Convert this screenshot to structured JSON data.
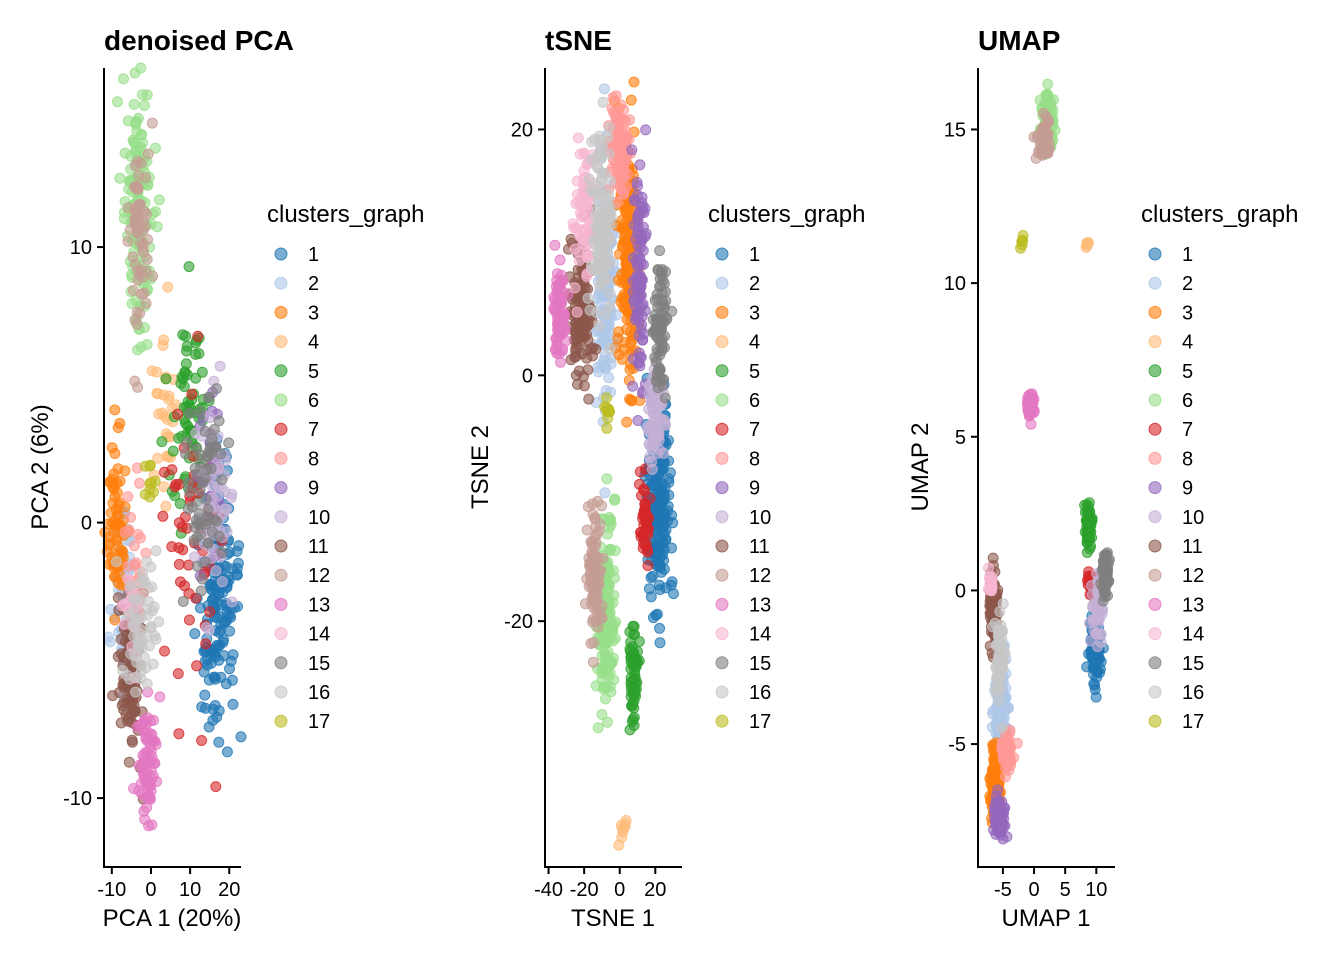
{
  "colors": {
    "1": "#1F77B4",
    "2": "#AEC7E8",
    "3": "#FF7F0E",
    "4": "#FFBB78",
    "5": "#2CA02C",
    "6": "#98DF8A",
    "7": "#D62728",
    "8": "#FF9896",
    "9": "#9467BD",
    "10": "#C5B0D5",
    "11": "#8C564B",
    "12": "#C49C94",
    "13": "#E377C2",
    "14": "#F7B6D2",
    "15": "#7F7F7F",
    "16": "#C7C7C7",
    "17": "#BCBD22"
  },
  "chart_data": [
    {
      "type": "scatter",
      "title": "denoised PCA",
      "xlabel": "PCA 1 (20%)",
      "ylabel": "PCA 2 (6%)",
      "xlim": [
        -12,
        23
      ],
      "ylim": [
        -12.5,
        16.5
      ],
      "xticks": [
        -10,
        0,
        10,
        20
      ],
      "xticklabels": [
        "-10",
        "0",
        "10",
        "20"
      ],
      "yticks": [
        -10,
        0,
        10
      ],
      "yticklabels": [
        "-10",
        "0",
        "10"
      ],
      "legend_title": "clusters_graph",
      "legend_position": "right",
      "grid": false,
      "clusters": [
        {
          "name": "1",
          "cx": 17,
          "cy": -3,
          "sx": 2.5,
          "sy": 2.5,
          "n": 160
        },
        {
          "name": "2",
          "cx": -7,
          "cy": -2.5,
          "sx": 1.5,
          "sy": 1.5,
          "n": 70
        },
        {
          "name": "3",
          "cx": -9,
          "cy": 0,
          "sx": 1.2,
          "sy": 1.5,
          "n": 70
        },
        {
          "name": "4",
          "cx": 3,
          "cy": 4,
          "sx": 1.5,
          "sy": 1.5,
          "n": 30
        },
        {
          "name": "5",
          "cx": 10,
          "cy": 4,
          "sx": 2.5,
          "sy": 1.8,
          "n": 70
        },
        {
          "name": "6",
          "cx": -3,
          "cy": 11,
          "sx": 1.8,
          "sy": 2.5,
          "n": 140
        },
        {
          "name": "7",
          "cx": 10,
          "cy": -1,
          "sx": 4,
          "sy": 3.5,
          "n": 55
        },
        {
          "name": "8",
          "cx": -4,
          "cy": -1.5,
          "sx": 1.5,
          "sy": 1.5,
          "n": 25
        },
        {
          "name": "9",
          "cx": 15,
          "cy": 1.5,
          "sx": 2,
          "sy": 1.5,
          "n": 25
        },
        {
          "name": "10",
          "cx": 16,
          "cy": 0.5,
          "sx": 2,
          "sy": 2,
          "n": 60
        },
        {
          "name": "11",
          "cx": -5,
          "cy": -5.5,
          "sx": 1.5,
          "sy": 1.5,
          "n": 100
        },
        {
          "name": "12",
          "cx": -3,
          "cy": 10.5,
          "sx": 1.5,
          "sy": 2,
          "n": 60
        },
        {
          "name": "13",
          "cx": -1,
          "cy": -8.5,
          "sx": 1.2,
          "sy": 1.2,
          "n": 70
        },
        {
          "name": "14",
          "cx": -5,
          "cy": -3.5,
          "sx": 1.2,
          "sy": 1.2,
          "n": 20
        },
        {
          "name": "15",
          "cx": 13,
          "cy": 1,
          "sx": 3,
          "sy": 2,
          "n": 60
        },
        {
          "name": "16",
          "cx": -3,
          "cy": -3.5,
          "sx": 2,
          "sy": 1.5,
          "n": 60
        },
        {
          "name": "17",
          "cx": 0,
          "cy": 1.5,
          "sx": 0.8,
          "sy": 0.5,
          "n": 10
        }
      ]
    },
    {
      "type": "scatter",
      "title": "tSNE",
      "xlabel": "TSNE 1",
      "ylabel": "TSNE 2",
      "xlim": [
        -42,
        35
      ],
      "ylim": [
        -40,
        25
      ],
      "xticks": [
        -40,
        -20,
        0,
        20
      ],
      "xticklabels": [
        "-40",
        "-20",
        "0",
        "20"
      ],
      "yticks": [
        -20,
        0,
        20
      ],
      "yticklabels": [
        "-20",
        "0",
        "20"
      ],
      "legend_title": "clusters_graph",
      "legend_position": "right",
      "grid": false,
      "clusters": [
        {
          "name": "1",
          "cx": 22,
          "cy": -10,
          "sx": 3,
          "sy": 4,
          "n": 220
        },
        {
          "name": "2",
          "cx": -8,
          "cy": 8,
          "sx": 3,
          "sy": 5,
          "n": 160
        },
        {
          "name": "3",
          "cx": 5,
          "cy": 10,
          "sx": 3,
          "sy": 5,
          "n": 180
        },
        {
          "name": "4",
          "cx": 2,
          "cy": -37,
          "sx": 1,
          "sy": 0.5,
          "n": 8
        },
        {
          "name": "5",
          "cx": 8,
          "cy": -24,
          "sx": 1.5,
          "sy": 2,
          "n": 60
        },
        {
          "name": "6",
          "cx": -8,
          "cy": -19,
          "sx": 2.5,
          "sy": 4,
          "n": 160
        },
        {
          "name": "7",
          "cx": 14,
          "cy": -12,
          "sx": 1.5,
          "sy": 2,
          "n": 40
        },
        {
          "name": "8",
          "cx": 0,
          "cy": 18,
          "sx": 3,
          "sy": 2,
          "n": 100
        },
        {
          "name": "9",
          "cx": 11,
          "cy": 8,
          "sx": 2,
          "sy": 5,
          "n": 100
        },
        {
          "name": "10",
          "cx": 20,
          "cy": -3,
          "sx": 2.5,
          "sy": 2.5,
          "n": 80
        },
        {
          "name": "11",
          "cx": -22,
          "cy": 6,
          "sx": 3,
          "sy": 3,
          "n": 130
        },
        {
          "name": "12",
          "cx": -14,
          "cy": -16,
          "sx": 2,
          "sy": 3,
          "n": 90
        },
        {
          "name": "13",
          "cx": -34,
          "cy": 5,
          "sx": 2,
          "sy": 2,
          "n": 80
        },
        {
          "name": "14",
          "cx": -20,
          "cy": 13,
          "sx": 3,
          "sy": 3,
          "n": 70
        },
        {
          "name": "15",
          "cx": 23,
          "cy": 4,
          "sx": 2,
          "sy": 3,
          "n": 80
        },
        {
          "name": "16",
          "cx": -10,
          "cy": 12,
          "sx": 3,
          "sy": 4,
          "n": 110
        },
        {
          "name": "17",
          "cx": -7,
          "cy": -3,
          "sx": 0.8,
          "sy": 0.5,
          "n": 10
        }
      ]
    },
    {
      "type": "scatter",
      "title": "UMAP",
      "xlabel": "UMAP 1",
      "ylabel": "UMAP 2",
      "xlim": [
        -9,
        13
      ],
      "ylim": [
        -9,
        17
      ],
      "xticks": [
        -5,
        0,
        5,
        10
      ],
      "xticklabels": [
        "-5",
        "0",
        "5",
        "10"
      ],
      "yticks": [
        -5,
        0,
        5,
        10,
        15
      ],
      "yticklabels": [
        "-5",
        "0",
        "5",
        "10",
        "15"
      ],
      "legend_title": "clusters_graph",
      "legend_position": "right",
      "grid": false,
      "clusters": [
        {
          "name": "1",
          "cx": 9.8,
          "cy": -1.8,
          "sx": 0.4,
          "sy": 0.5,
          "n": 160
        },
        {
          "name": "2",
          "cx": -5.5,
          "cy": -3.8,
          "sx": 0.5,
          "sy": 0.8,
          "n": 140
        },
        {
          "name": "3",
          "cx": -6.2,
          "cy": -6.2,
          "sx": 0.4,
          "sy": 0.6,
          "n": 160
        },
        {
          "name": "4",
          "cx": 8.5,
          "cy": 11.3,
          "sx": 0.15,
          "sy": 0.1,
          "n": 6
        },
        {
          "name": "5",
          "cx": 8.8,
          "cy": 2,
          "sx": 0.25,
          "sy": 0.4,
          "n": 50
        },
        {
          "name": "6",
          "cx": 2.2,
          "cy": 15.2,
          "sx": 0.5,
          "sy": 0.4,
          "n": 120
        },
        {
          "name": "7",
          "cx": 9.2,
          "cy": 0.2,
          "sx": 0.3,
          "sy": 0.2,
          "n": 30
        },
        {
          "name": "8",
          "cx": -4.3,
          "cy": -5.3,
          "sx": 0.5,
          "sy": 0.3,
          "n": 60
        },
        {
          "name": "9",
          "cx": -5.6,
          "cy": -7.4,
          "sx": 0.4,
          "sy": 0.3,
          "n": 70
        },
        {
          "name": "10",
          "cx": 10.2,
          "cy": -0.5,
          "sx": 0.5,
          "sy": 0.5,
          "n": 60
        },
        {
          "name": "11",
          "cx": -6.5,
          "cy": -0.5,
          "sx": 0.3,
          "sy": 0.6,
          "n": 80
        },
        {
          "name": "12",
          "cx": 1.5,
          "cy": 14.7,
          "sx": 0.5,
          "sy": 0.3,
          "n": 60
        },
        {
          "name": "13",
          "cx": -0.6,
          "cy": 6,
          "sx": 0.3,
          "sy": 0.2,
          "n": 60
        },
        {
          "name": "14",
          "cx": -7,
          "cy": 0.2,
          "sx": 0.2,
          "sy": 0.2,
          "n": 20
        },
        {
          "name": "15",
          "cx": 11.5,
          "cy": 0.6,
          "sx": 0.3,
          "sy": 0.4,
          "n": 50
        },
        {
          "name": "16",
          "cx": -5.5,
          "cy": -2.2,
          "sx": 0.4,
          "sy": 0.8,
          "n": 60
        },
        {
          "name": "17",
          "cx": -2,
          "cy": 11.3,
          "sx": 0.15,
          "sy": 0.1,
          "n": 6
        }
      ]
    }
  ],
  "legend_items": [
    "1",
    "2",
    "3",
    "4",
    "5",
    "6",
    "7",
    "8",
    "9",
    "10",
    "11",
    "12",
    "13",
    "14",
    "15",
    "16",
    "17"
  ]
}
